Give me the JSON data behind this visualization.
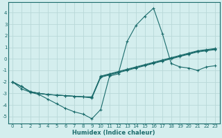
{
  "xlabel": "Humidex (Indice chaleur)",
  "xlim": [
    -0.5,
    23.5
  ],
  "ylim": [
    -5.6,
    4.9
  ],
  "yticks": [
    -5,
    -4,
    -3,
    -2,
    -1,
    0,
    1,
    2,
    3,
    4
  ],
  "xticks": [
    0,
    1,
    2,
    3,
    4,
    5,
    6,
    7,
    8,
    9,
    10,
    11,
    12,
    13,
    14,
    15,
    16,
    17,
    18,
    19,
    20,
    21,
    22,
    23
  ],
  "bg_color": "#d4eeee",
  "grid_color": "#b8d8d8",
  "line_color": "#1a6b6b",
  "line1_x": [
    0,
    1,
    2,
    3,
    4,
    5,
    6,
    7,
    8,
    9,
    10,
    11,
    12,
    13,
    14,
    15,
    16,
    17,
    18,
    19,
    20,
    21,
    22,
    23
  ],
  "line1_y": [
    -2.0,
    -2.6,
    -2.9,
    -3.1,
    -3.5,
    -3.9,
    -4.3,
    -4.6,
    -4.8,
    -5.2,
    -4.4,
    -1.5,
    -1.3,
    1.5,
    2.9,
    3.7,
    4.4,
    2.2,
    -0.4,
    -0.7,
    -0.8,
    -1.0,
    -0.7,
    -0.6
  ],
  "line2_x": [
    0,
    1,
    2,
    3,
    4,
    5,
    6,
    7,
    8,
    9,
    10,
    11,
    12,
    13,
    14,
    15,
    16,
    17,
    18,
    19,
    20,
    21,
    22,
    23
  ],
  "line2_y": [
    -2.0,
    -2.4,
    -2.85,
    -3.0,
    -3.1,
    -3.15,
    -3.2,
    -3.25,
    -3.3,
    -3.3,
    -1.5,
    -1.3,
    -1.1,
    -0.9,
    -0.7,
    -0.5,
    -0.3,
    -0.1,
    0.1,
    0.3,
    0.5,
    0.7,
    0.8,
    0.9
  ],
  "line3_x": [
    0,
    1,
    2,
    3,
    4,
    5,
    6,
    7,
    8,
    9,
    10,
    11,
    12,
    13,
    14,
    15,
    16,
    17,
    18,
    19,
    20,
    21,
    22,
    23
  ],
  "line3_y": [
    -2.0,
    -2.4,
    -2.85,
    -3.0,
    -3.1,
    -3.15,
    -3.2,
    -3.25,
    -3.3,
    -3.35,
    -1.55,
    -1.35,
    -1.15,
    -0.95,
    -0.75,
    -0.55,
    -0.35,
    -0.15,
    0.05,
    0.25,
    0.45,
    0.65,
    0.75,
    0.85
  ],
  "line4_x": [
    0,
    1,
    2,
    3,
    4,
    5,
    6,
    7,
    8,
    9,
    10,
    11,
    12,
    13,
    14,
    15,
    16,
    17,
    18,
    19,
    20,
    21,
    22,
    23
  ],
  "line4_y": [
    -2.0,
    -2.4,
    -2.85,
    -3.0,
    -3.1,
    -3.15,
    -3.2,
    -3.25,
    -3.3,
    -3.4,
    -1.6,
    -1.4,
    -1.2,
    -1.0,
    -0.8,
    -0.6,
    -0.4,
    -0.2,
    0.0,
    0.2,
    0.4,
    0.6,
    0.7,
    0.8
  ]
}
